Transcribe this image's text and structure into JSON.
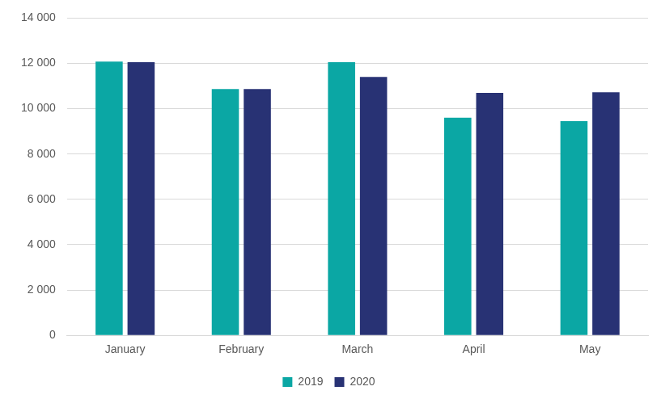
{
  "chart_data": {
    "type": "bar",
    "categories": [
      "January",
      "February",
      "March",
      "April",
      "May"
    ],
    "series": [
      {
        "name": "2019",
        "color": "#0ba7a4",
        "values": [
          12080,
          10870,
          12050,
          9600,
          9450
        ]
      },
      {
        "name": "2020",
        "color": "#283274",
        "values": [
          12050,
          10870,
          11400,
          10700,
          10730
        ]
      }
    ],
    "ylim": [
      0,
      14000
    ],
    "yticks": [
      0,
      {
        "value": 2000,
        "label": "2 000"
      },
      {
        "value": 4000,
        "label": "4 000"
      },
      {
        "value": 6000,
        "label": "6 000"
      },
      {
        "value": 8000,
        "label": "8 000"
      },
      {
        "value": 10000,
        "label": "10 000"
      },
      {
        "value": 12000,
        "label": "12 000"
      },
      {
        "value": 14000,
        "label": "14 000"
      }
    ],
    "grid": true,
    "legend": "bottom"
  }
}
